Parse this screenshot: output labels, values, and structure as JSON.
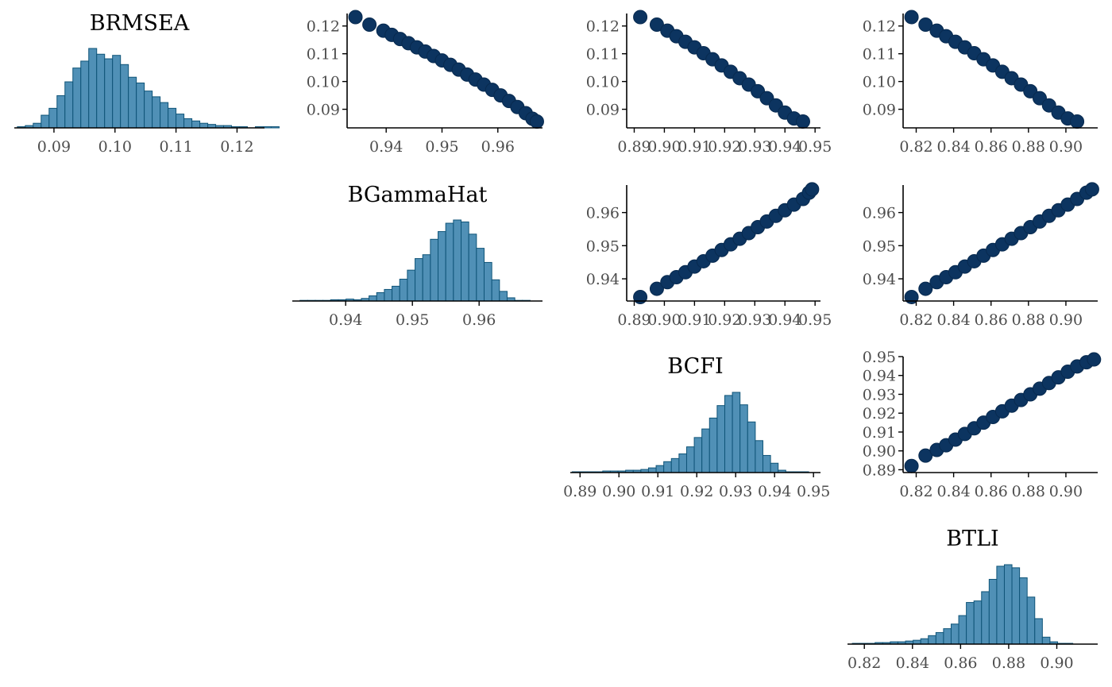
{
  "colors": {
    "hist_fill": "#5090B6",
    "hist_stroke": "#0F5478",
    "point_fill": "#0C3460",
    "point_stroke": "#082A4F",
    "axis": "#000000",
    "tick_text": "#4d4d4d"
  },
  "chart_data": [
    {
      "type": "histogram",
      "title": "BRMSEA",
      "variable": "BRMSEA",
      "xlim": [
        0.0835,
        0.1245
      ],
      "xticks": [
        "0.09",
        "0.10",
        "0.11",
        "0.12"
      ],
      "bins": {
        "start": 0.084,
        "width": 0.0013,
        "counts": [
          1,
          2,
          4,
          11,
          17,
          28,
          40,
          52,
          58,
          69,
          64,
          60,
          63,
          55,
          44,
          39,
          32,
          27,
          22,
          17,
          12,
          8,
          6,
          4,
          3,
          2,
          2,
          1,
          1,
          0,
          1,
          1,
          1
        ]
      }
    },
    {
      "type": "scatter",
      "x_variable": "BGammaHat",
      "y_variable": "BRMSEA",
      "xlim": [
        0.933,
        0.968
      ],
      "ylim": [
        0.0833,
        0.1245
      ],
      "xticks": [
        "0.94",
        "0.95",
        "0.96"
      ],
      "yticks": [
        "0.09",
        "0.10",
        "0.11",
        "0.12"
      ],
      "points": [
        [
          0.9345,
          0.1232
        ],
        [
          0.937,
          0.1205
        ],
        [
          0.9395,
          0.1183
        ],
        [
          0.941,
          0.1168
        ],
        [
          0.9425,
          0.1153
        ],
        [
          0.944,
          0.1138
        ],
        [
          0.9455,
          0.1123
        ],
        [
          0.947,
          0.1108
        ],
        [
          0.9485,
          0.1092
        ],
        [
          0.95,
          0.1076
        ],
        [
          0.9515,
          0.106
        ],
        [
          0.953,
          0.1043
        ],
        [
          0.9545,
          0.1025
        ],
        [
          0.956,
          0.1007
        ],
        [
          0.9575,
          0.0989
        ],
        [
          0.959,
          0.097
        ],
        [
          0.9605,
          0.095
        ],
        [
          0.962,
          0.093
        ],
        [
          0.9635,
          0.0908
        ],
        [
          0.965,
          0.0886
        ],
        [
          0.9662,
          0.0866
        ],
        [
          0.967,
          0.0856
        ]
      ]
    },
    {
      "type": "scatter",
      "x_variable": "BCFI",
      "y_variable": "BRMSEA",
      "xlim": [
        0.8875,
        0.9518
      ],
      "ylim": [
        0.0833,
        0.1245
      ],
      "xticks": [
        "0.89",
        "0.90",
        "0.91",
        "0.92",
        "0.93",
        "0.94",
        "0.95"
      ],
      "yticks": [
        "0.09",
        "0.10",
        "0.11",
        "0.12"
      ],
      "points": [
        [
          0.892,
          0.1232
        ],
        [
          0.8975,
          0.1205
        ],
        [
          0.901,
          0.1183
        ],
        [
          0.904,
          0.1163
        ],
        [
          0.907,
          0.1143
        ],
        [
          0.91,
          0.1123
        ],
        [
          0.913,
          0.1102
        ],
        [
          0.916,
          0.108
        ],
        [
          0.919,
          0.1058
        ],
        [
          0.922,
          0.1035
        ],
        [
          0.925,
          0.1012
        ],
        [
          0.928,
          0.0989
        ],
        [
          0.931,
          0.0965
        ],
        [
          0.934,
          0.094
        ],
        [
          0.937,
          0.0914
        ],
        [
          0.94,
          0.0888
        ],
        [
          0.943,
          0.0867
        ],
        [
          0.946,
          0.0856
        ]
      ]
    },
    {
      "type": "scatter",
      "x_variable": "BTLI",
      "y_variable": "BRMSEA",
      "xlim": [
        0.813,
        0.917
      ],
      "ylim": [
        0.0833,
        0.1245
      ],
      "xticks": [
        "0.82",
        "0.84",
        "0.86",
        "0.88",
        "0.90"
      ],
      "yticks": [
        "0.09",
        "0.10",
        "0.11",
        "0.12"
      ],
      "points": [
        [
          0.8175,
          0.1232
        ],
        [
          0.825,
          0.1205
        ],
        [
          0.831,
          0.1183
        ],
        [
          0.836,
          0.1163
        ],
        [
          0.841,
          0.1143
        ],
        [
          0.846,
          0.1123
        ],
        [
          0.851,
          0.1102
        ],
        [
          0.856,
          0.108
        ],
        [
          0.861,
          0.1058
        ],
        [
          0.866,
          0.1035
        ],
        [
          0.871,
          0.1012
        ],
        [
          0.876,
          0.0989
        ],
        [
          0.881,
          0.0965
        ],
        [
          0.886,
          0.094
        ],
        [
          0.891,
          0.0914
        ],
        [
          0.896,
          0.0888
        ],
        [
          0.901,
          0.0867
        ],
        [
          0.906,
          0.0856
        ]
      ]
    },
    {
      "type": "histogram",
      "title": "BGammaHat",
      "variable": "BGammaHat",
      "xlim": [
        0.932,
        0.9695
      ],
      "xticks": [
        "0.94",
        "0.95",
        "0.96"
      ],
      "bins": {
        "start": 0.932,
        "width": 0.00115,
        "counts": [
          0,
          1,
          1,
          1,
          1,
          2,
          2,
          3,
          2,
          4,
          8,
          13,
          18,
          23,
          34,
          48,
          66,
          72,
          96,
          108,
          121,
          126,
          123,
          104,
          82,
          60,
          33,
          15,
          5,
          1,
          1
        ]
      }
    },
    {
      "type": "scatter",
      "x_variable": "BCFI",
      "y_variable": "BGammaHat",
      "xlim": [
        0.8875,
        0.9518
      ],
      "ylim": [
        0.9333,
        0.9683
      ],
      "xticks": [
        "0.89",
        "0.90",
        "0.91",
        "0.92",
        "0.93",
        "0.94",
        "0.95"
      ],
      "yticks": [
        "0.94",
        "0.95",
        "0.96"
      ],
      "points": [
        [
          0.892,
          0.9345
        ],
        [
          0.8975,
          0.937
        ],
        [
          0.901,
          0.939
        ],
        [
          0.904,
          0.9405
        ],
        [
          0.907,
          0.942
        ],
        [
          0.91,
          0.9437
        ],
        [
          0.913,
          0.9453
        ],
        [
          0.916,
          0.947
        ],
        [
          0.919,
          0.9487
        ],
        [
          0.922,
          0.9504
        ],
        [
          0.925,
          0.9521
        ],
        [
          0.928,
          0.9538
        ],
        [
          0.931,
          0.9556
        ],
        [
          0.934,
          0.9573
        ],
        [
          0.937,
          0.959
        ],
        [
          0.94,
          0.9607
        ],
        [
          0.943,
          0.9624
        ],
        [
          0.946,
          0.9641
        ],
        [
          0.948,
          0.966
        ],
        [
          0.949,
          0.967
        ]
      ]
    },
    {
      "type": "scatter",
      "x_variable": "BTLI",
      "y_variable": "BGammaHat",
      "xlim": [
        0.813,
        0.917
      ],
      "ylim": [
        0.9333,
        0.9683
      ],
      "xticks": [
        "0.82",
        "0.84",
        "0.86",
        "0.88",
        "0.90"
      ],
      "yticks": [
        "0.94",
        "0.95",
        "0.96"
      ],
      "points": [
        [
          0.8175,
          0.9345
        ],
        [
          0.825,
          0.937
        ],
        [
          0.831,
          0.939
        ],
        [
          0.836,
          0.9405
        ],
        [
          0.841,
          0.942
        ],
        [
          0.846,
          0.9437
        ],
        [
          0.851,
          0.9453
        ],
        [
          0.856,
          0.947
        ],
        [
          0.861,
          0.9487
        ],
        [
          0.866,
          0.9504
        ],
        [
          0.871,
          0.9521
        ],
        [
          0.876,
          0.9538
        ],
        [
          0.881,
          0.9556
        ],
        [
          0.886,
          0.9573
        ],
        [
          0.891,
          0.959
        ],
        [
          0.896,
          0.9607
        ],
        [
          0.901,
          0.9624
        ],
        [
          0.906,
          0.9641
        ],
        [
          0.911,
          0.966
        ],
        [
          0.914,
          0.967
        ]
      ]
    },
    {
      "type": "histogram",
      "title": "BCFI",
      "variable": "BCFI",
      "xlim": [
        0.8875,
        0.9518
      ],
      "xticks": [
        "0.89",
        "0.90",
        "0.91",
        "0.92",
        "0.93",
        "0.94",
        "0.95"
      ],
      "bins": {
        "start": 0.888,
        "width": 0.00196,
        "counts": [
          1,
          1,
          1,
          1,
          2,
          2,
          2,
          3,
          3,
          4,
          6,
          9,
          14,
          18,
          24,
          33,
          45,
          56,
          70,
          86,
          99,
          103,
          87,
          65,
          41,
          22,
          12,
          3,
          1,
          1,
          1
        ]
      }
    },
    {
      "type": "scatter",
      "x_variable": "BTLI",
      "y_variable": "BCFI",
      "xlim": [
        0.813,
        0.917
      ],
      "ylim": [
        0.8885,
        0.95
      ],
      "xticks": [
        "0.82",
        "0.84",
        "0.86",
        "0.88",
        "0.90"
      ],
      "yticks": [
        "0.89",
        "0.90",
        "0.91",
        "0.92",
        "0.93",
        "0.94",
        "0.95"
      ],
      "points": [
        [
          0.8175,
          0.892
        ],
        [
          0.825,
          0.8975
        ],
        [
          0.831,
          0.9005
        ],
        [
          0.836,
          0.903
        ],
        [
          0.841,
          0.906
        ],
        [
          0.846,
          0.909
        ],
        [
          0.851,
          0.912
        ],
        [
          0.856,
          0.915
        ],
        [
          0.861,
          0.918
        ],
        [
          0.866,
          0.921
        ],
        [
          0.871,
          0.924
        ],
        [
          0.876,
          0.927
        ],
        [
          0.881,
          0.93
        ],
        [
          0.886,
          0.933
        ],
        [
          0.891,
          0.936
        ],
        [
          0.896,
          0.939
        ],
        [
          0.901,
          0.942
        ],
        [
          0.906,
          0.9448
        ],
        [
          0.911,
          0.947
        ],
        [
          0.915,
          0.9485
        ]
      ]
    },
    {
      "type": "histogram",
      "title": "BTLI",
      "variable": "BTLI",
      "xlim": [
        0.813,
        0.917
      ],
      "xticks": [
        "0.82",
        "0.84",
        "0.86",
        "0.88",
        "0.90"
      ],
      "bins": {
        "start": 0.815,
        "width": 0.00316,
        "counts": [
          1,
          1,
          1,
          2,
          2,
          3,
          3,
          4,
          5,
          7,
          11,
          15,
          20,
          26,
          37,
          54,
          56,
          68,
          84,
          101,
          103,
          99,
          86,
          61,
          33,
          9,
          3,
          1,
          1,
          0
        ]
      }
    }
  ]
}
